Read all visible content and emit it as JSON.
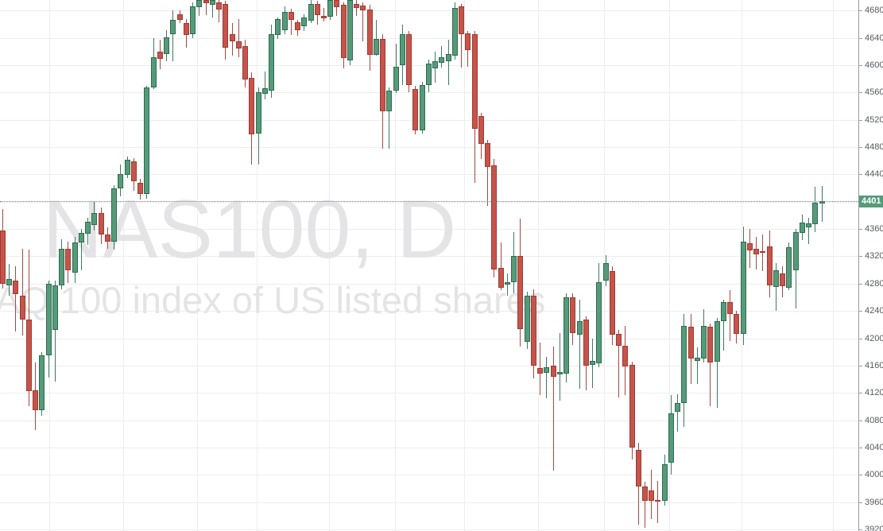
{
  "watermark": {
    "symbol": "NAS100, D",
    "description": "AQ 100 index of US listed shares"
  },
  "price_axis": {
    "tick_labels": [
      "4680",
      "4640",
      "4600",
      "4560",
      "4520",
      "4480",
      "4440",
      "4360",
      "4320",
      "4280",
      "4240",
      "4200",
      "4160",
      "4120",
      "4080",
      "4040",
      "4000",
      "3960",
      "3920"
    ],
    "current_price_label": "4401"
  },
  "chart_data": {
    "type": "candlestick",
    "title": "NAS100, D",
    "symbol": "NAS100",
    "timeframe": "D",
    "description_visible": "AQ 100 index of US listed shares",
    "last_price": 4401,
    "ylim": [
      3917.7,
      4695.5
    ],
    "grid": true,
    "legend_position": "none",
    "price_gridlines": [
      4680,
      4640,
      4600,
      4560,
      4520,
      4480,
      4440,
      4400,
      4360,
      4320,
      4280,
      4240,
      4200,
      4160,
      4120,
      4080,
      4040,
      4000,
      3960,
      3920
    ],
    "time_gridlines_x": [
      62,
      155,
      248,
      323,
      414,
      497,
      584,
      677,
      760,
      842,
      933,
      1048
    ],
    "x_start": 3,
    "x_step": 8.245,
    "candles_ohlc": [
      [
        4358,
        4389,
        4272,
        4280
      ],
      [
        4278,
        4309,
        4262,
        4287
      ],
      [
        4284,
        4305,
        4210,
        4264
      ],
      [
        4262,
        4331,
        4204,
        4227
      ],
      [
        4227,
        4330,
        4101,
        4122
      ],
      [
        4124,
        4165,
        4066,
        4095
      ],
      [
        4095,
        4180,
        4087,
        4175
      ],
      [
        4175,
        4284,
        4142,
        4280
      ],
      [
        4212,
        4284,
        4136,
        4277
      ],
      [
        4278,
        4345,
        4272,
        4331
      ],
      [
        4331,
        4342,
        4282,
        4300
      ],
      [
        4296,
        4348,
        4280,
        4340
      ],
      [
        4340,
        4360,
        4300,
        4354
      ],
      [
        4354,
        4377,
        4337,
        4371
      ],
      [
        4366,
        4400,
        4358,
        4384
      ],
      [
        4383,
        4392,
        4338,
        4352
      ],
      [
        4352,
        4362,
        4331,
        4342
      ],
      [
        4342,
        4424,
        4330,
        4420
      ],
      [
        4420,
        4455,
        4408,
        4441
      ],
      [
        4439,
        4466,
        4435,
        4461
      ],
      [
        4459,
        4464,
        4416,
        4430
      ],
      [
        4428,
        4433,
        4403,
        4412
      ],
      [
        4412,
        4570,
        4405,
        4568
      ],
      [
        4568,
        4640,
        4566,
        4612
      ],
      [
        4620,
        4637,
        4594,
        4610
      ],
      [
        4616,
        4651,
        4606,
        4641
      ],
      [
        4645,
        4680,
        4606,
        4666
      ],
      [
        4674,
        4680,
        4661,
        4666
      ],
      [
        4662,
        4668,
        4626,
        4645
      ],
      [
        4645,
        4692,
        4640,
        4686
      ],
      [
        4685,
        4697,
        4672,
        4695
      ],
      [
        4695,
        4698,
        4674,
        4690
      ],
      [
        4688,
        4698,
        4670,
        4695
      ],
      [
        4692,
        4696,
        4663,
        4682
      ],
      [
        4690,
        4694,
        4608,
        4626
      ],
      [
        4645,
        4662,
        4614,
        4634
      ],
      [
        4635,
        4668,
        4612,
        4624
      ],
      [
        4628,
        4637,
        4567,
        4579
      ],
      [
        4581,
        4590,
        4455,
        4498
      ],
      [
        4500,
        4568,
        4455,
        4560
      ],
      [
        4558,
        4591,
        4550,
        4566
      ],
      [
        4562,
        4659,
        4552,
        4645
      ],
      [
        4645,
        4670,
        4639,
        4668
      ],
      [
        4651,
        4686,
        4645,
        4678
      ],
      [
        4678,
        4683,
        4645,
        4666
      ],
      [
        4663,
        4666,
        4643,
        4651
      ],
      [
        4657,
        4674,
        4649,
        4670
      ],
      [
        4666,
        4696,
        4662,
        4690
      ],
      [
        4690,
        4694,
        4659,
        4674
      ],
      [
        4672,
        4684,
        4664,
        4668
      ],
      [
        4670,
        4699,
        4666,
        4695
      ],
      [
        4695,
        4699,
        4672,
        4684
      ],
      [
        4688,
        4692,
        4595,
        4610
      ],
      [
        4606,
        4699,
        4600,
        4695
      ],
      [
        4690,
        4697,
        4672,
        4684
      ],
      [
        4687,
        4692,
        4635,
        4680
      ],
      [
        4682,
        4688,
        4591,
        4616
      ],
      [
        4616,
        4666,
        4614,
        4639
      ],
      [
        4639,
        4645,
        4477,
        4533
      ],
      [
        4533,
        4568,
        4478,
        4563
      ],
      [
        4563,
        4631,
        4559,
        4598
      ],
      [
        4600,
        4659,
        4571,
        4645
      ],
      [
        4645,
        4650,
        4560,
        4571
      ],
      [
        4565,
        4570,
        4499,
        4505
      ],
      [
        4505,
        4576,
        4500,
        4571
      ],
      [
        4570,
        4608,
        4560,
        4602
      ],
      [
        4595,
        4620,
        4575,
        4606
      ],
      [
        4604,
        4628,
        4596,
        4612
      ],
      [
        4606,
        4637,
        4571,
        4616
      ],
      [
        4614,
        4692,
        4608,
        4684
      ],
      [
        4686,
        4690,
        4597,
        4645
      ],
      [
        4647,
        4650,
        4598,
        4622
      ],
      [
        4645,
        4650,
        4428,
        4507
      ],
      [
        4525,
        4530,
        4463,
        4484
      ],
      [
        4486,
        4490,
        4393,
        4451
      ],
      [
        4453,
        4463,
        4290,
        4300
      ],
      [
        4303,
        4340,
        4270,
        4274
      ],
      [
        4278,
        4295,
        4262,
        4282
      ],
      [
        4282,
        4356,
        4266,
        4321
      ],
      [
        4321,
        4375,
        4187,
        4214
      ],
      [
        4194,
        4268,
        4184,
        4262
      ],
      [
        4262,
        4272,
        4142,
        4159
      ],
      [
        4156,
        4194,
        4117,
        4148
      ],
      [
        4150,
        4173,
        4113,
        4158
      ],
      [
        4160,
        4188,
        4006,
        4144
      ],
      [
        4146,
        4208,
        4109,
        4150
      ],
      [
        4148,
        4266,
        4136,
        4260
      ],
      [
        4260,
        4266,
        4190,
        4208
      ],
      [
        4205,
        4256,
        4126,
        4225
      ],
      [
        4227,
        4232,
        4124,
        4159
      ],
      [
        4161,
        4200,
        4128,
        4167
      ],
      [
        4163,
        4310,
        4158,
        4282
      ],
      [
        4284,
        4322,
        4277,
        4310
      ],
      [
        4299,
        4305,
        4190,
        4206
      ],
      [
        4206,
        4212,
        4113,
        4189
      ],
      [
        4189,
        4218,
        4117,
        4159
      ],
      [
        4161,
        4166,
        4023,
        4040
      ],
      [
        4036,
        4047,
        3927,
        3983
      ],
      [
        3983,
        3990,
        3923,
        3962
      ],
      [
        3977,
        4007,
        3935,
        3962
      ],
      [
        3963,
        3991,
        3929,
        3961
      ],
      [
        3962,
        4030,
        3956,
        4016
      ],
      [
        4018,
        4117,
        4000,
        4090
      ],
      [
        4092,
        4118,
        4063,
        4105
      ],
      [
        4105,
        4235,
        4070,
        4218
      ],
      [
        4217,
        4236,
        4134,
        4170
      ],
      [
        4167,
        4187,
        4134,
        4172
      ],
      [
        4170,
        4243,
        4165,
        4218
      ],
      [
        4217,
        4222,
        4101,
        4165
      ],
      [
        4166,
        4230,
        4099,
        4225
      ],
      [
        4225,
        4257,
        4183,
        4253
      ],
      [
        4253,
        4270,
        4196,
        4236
      ],
      [
        4236,
        4240,
        4192,
        4207
      ],
      [
        4207,
        4364,
        4190,
        4342
      ],
      [
        4339,
        4360,
        4303,
        4329
      ],
      [
        4331,
        4348,
        4300,
        4323
      ],
      [
        4327,
        4352,
        4298,
        4325
      ],
      [
        4335,
        4358,
        4260,
        4278
      ],
      [
        4276,
        4310,
        4240,
        4300
      ],
      [
        4295,
        4305,
        4260,
        4276
      ],
      [
        4274,
        4340,
        4270,
        4333
      ],
      [
        4300,
        4360,
        4243,
        4356
      ],
      [
        4354,
        4381,
        4344,
        4369
      ],
      [
        4362,
        4377,
        4338,
        4368
      ],
      [
        4368,
        4422,
        4356,
        4399
      ],
      [
        4397,
        4423,
        4371,
        4401
      ]
    ]
  },
  "colors": {
    "up_fill": "#569b79",
    "up_border": "#2e6b51",
    "up_wick": "#3f7a63",
    "down_fill": "#c5544a",
    "down_border": "#a03a32",
    "down_wick": "#a34a42",
    "grid": "#ededed",
    "axis_line": "#999da5",
    "tick_text": "#55585e",
    "watermark": "#e4e4e6",
    "price_line": "#7f8489",
    "price_tag_bg": "#569b79",
    "price_tag_text": "#ffffff"
  }
}
